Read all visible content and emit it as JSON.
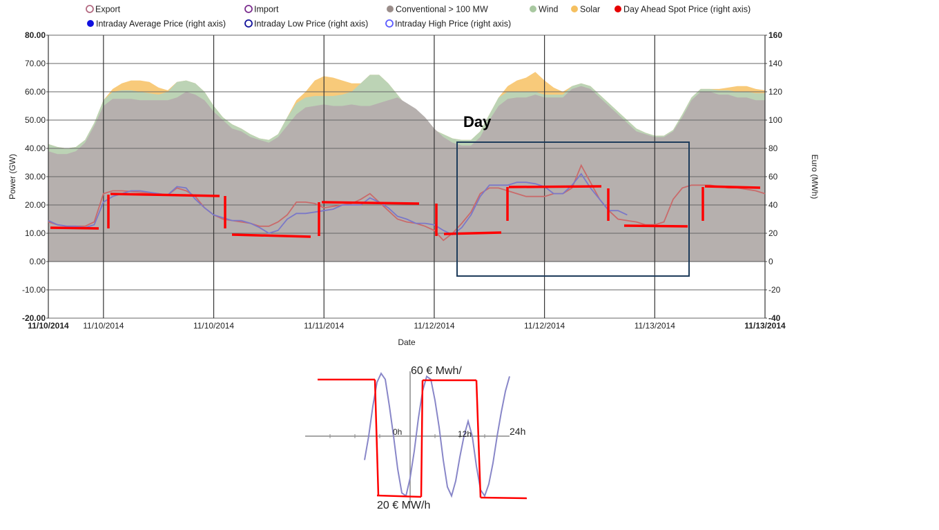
{
  "legend": [
    {
      "label": "Export",
      "kind": "ring",
      "color": "#b36b82"
    },
    {
      "label": "Import",
      "kind": "ring",
      "color": "#7b2e8e"
    },
    {
      "label": "Conventional > 100 MW",
      "kind": "dot",
      "color": "#9a8d8a"
    },
    {
      "label": "Wind",
      "kind": "dot",
      "color": "#a8c8a0"
    },
    {
      "label": "Solar",
      "kind": "dot",
      "color": "#f5c060"
    },
    {
      "label": "Day Ahead Spot Price (right axis)",
      "kind": "dot",
      "color": "#e60000"
    },
    {
      "label": "Intraday Average Price (right axis)",
      "kind": "dot",
      "color": "#1010e0"
    },
    {
      "label": "Intraday Low Price (right axis)",
      "kind": "ring",
      "color": "#10109a"
    },
    {
      "label": "Intraday High Price (right axis)",
      "kind": "ring",
      "color": "#5a5aff"
    }
  ],
  "chart_data": [
    {
      "type": "area",
      "xlabel": "Date",
      "ylabel": "Power (GW)",
      "y2label": "Euro (MWh)",
      "ylim": [
        -20,
        80
      ],
      "y2lim": [
        -40,
        160
      ],
      "x_unit": "hours from 11/10/2014 00:00",
      "xlim": [
        0,
        78
      ],
      "y_ticks": [
        "80.00",
        "70.00",
        "60.00",
        "50.00",
        "40.00",
        "30.00",
        "20.00",
        "10.00",
        "0.00",
        "-10.00",
        "-20.00"
      ],
      "y2_ticks": [
        "160",
        "140",
        "120",
        "100",
        "80",
        "60",
        "40",
        "20",
        "0",
        "-20",
        "-40"
      ],
      "x_tick_labels": [
        {
          "label": "11/10/2014",
          "x": 0,
          "bold": true
        },
        {
          "label": "11/10/2014",
          "x": 6,
          "bold": false
        },
        {
          "label": "11/10/2014",
          "x": 18,
          "bold": false
        },
        {
          "label": "11/11/2014",
          "x": 30,
          "bold": false
        },
        {
          "label": "11/12/2014",
          "x": 42,
          "bold": false
        },
        {
          "label": "11/12/2014",
          "x": 54,
          "bold": false
        },
        {
          "label": "11/13/2014",
          "x": 66,
          "bold": false
        },
        {
          "label": "11/13/2014",
          "x": 78,
          "bold": true
        }
      ],
      "grid": true,
      "series": [
        {
          "name": "Conventional > 100 MW",
          "axis": "left",
          "fill": "#b6b0ae",
          "x": [
            0,
            1,
            2,
            3,
            4,
            5,
            6,
            7,
            8,
            9,
            10,
            11,
            12,
            13,
            14,
            15,
            16,
            17,
            18,
            19,
            20,
            21,
            22,
            23,
            24,
            25,
            26,
            27,
            28,
            29,
            30,
            31,
            32,
            33,
            34,
            35,
            36,
            37,
            38,
            39,
            40,
            41,
            42,
            43,
            44,
            45,
            46,
            47,
            48,
            49,
            50,
            51,
            52,
            53,
            54,
            55,
            56,
            57,
            58,
            59,
            60,
            61,
            62,
            63,
            64,
            65,
            66,
            67,
            68,
            69,
            70,
            71,
            72,
            73,
            74,
            75,
            76,
            77,
            78
          ],
          "y": [
            39,
            38,
            38,
            39,
            42,
            48,
            55,
            57.5,
            57.5,
            57.5,
            57,
            57,
            57,
            57,
            58,
            60,
            59,
            57,
            53,
            50,
            47,
            46,
            44,
            43,
            42,
            44,
            48,
            52,
            54.5,
            55,
            55.5,
            55,
            55,
            55.5,
            55,
            55,
            56,
            57,
            58,
            56,
            54,
            51,
            47,
            44,
            42,
            41,
            41,
            44,
            50,
            55,
            57.5,
            58,
            58,
            59,
            58,
            58,
            58,
            61,
            62,
            61,
            58,
            55,
            52,
            49,
            46,
            45,
            44,
            44,
            46,
            51,
            57,
            60,
            60,
            59,
            59,
            58,
            58,
            57,
            57
          ]
        },
        {
          "name": "Wind",
          "axis": "left",
          "fill": "#bcd3b5",
          "x": [
            0,
            1,
            2,
            3,
            4,
            5,
            6,
            7,
            8,
            9,
            10,
            11,
            12,
            13,
            14,
            15,
            16,
            17,
            18,
            19,
            20,
            21,
            22,
            23,
            24,
            25,
            26,
            27,
            28,
            29,
            30,
            31,
            32,
            33,
            34,
            35,
            36,
            37,
            38,
            39,
            40,
            41,
            42,
            43,
            44,
            45,
            46,
            47,
            48,
            49,
            50,
            51,
            52,
            53,
            54,
            55,
            56,
            57,
            58,
            59,
            60,
            61,
            62,
            63,
            64,
            65,
            66,
            67,
            68,
            69,
            70,
            71,
            72,
            73,
            74,
            75,
            76,
            77,
            78
          ],
          "y": [
            41.5,
            40.5,
            40,
            40.5,
            43,
            49,
            57,
            60,
            60.5,
            60.5,
            60,
            59.5,
            59,
            60,
            63.5,
            64,
            63,
            60,
            55,
            51,
            48.5,
            47,
            45,
            43.5,
            43,
            45,
            51,
            56,
            58,
            58.5,
            58.5,
            58.5,
            59,
            60,
            63,
            66,
            66,
            63,
            59,
            55,
            51,
            48,
            46.5,
            45,
            43.5,
            43,
            43,
            46,
            52,
            58,
            60,
            60,
            60,
            60,
            59,
            59,
            59,
            62,
            63,
            62,
            59,
            56,
            53,
            50,
            47,
            45.5,
            44.5,
            44.5,
            46.5,
            52,
            58,
            61,
            61,
            60.5,
            60.5,
            60,
            60,
            59.5,
            59.5
          ]
        },
        {
          "name": "Solar",
          "axis": "left",
          "fill": "#f8ca7a",
          "x": [
            0,
            1,
            2,
            3,
            4,
            5,
            6,
            7,
            8,
            9,
            10,
            11,
            12,
            13,
            14,
            15,
            16,
            17,
            18,
            19,
            20,
            21,
            22,
            23,
            24,
            25,
            26,
            27,
            28,
            29,
            30,
            31,
            32,
            33,
            34,
            35,
            36,
            37,
            38,
            39,
            40,
            41,
            42,
            43,
            44,
            45,
            46,
            47,
            48,
            49,
            50,
            51,
            52,
            53,
            54,
            55,
            56,
            57,
            58,
            59,
            60,
            61,
            62,
            63,
            64,
            65,
            66,
            67,
            68,
            69,
            70,
            71,
            72,
            73,
            74,
            75,
            76,
            77,
            78
          ],
          "y": [
            41.5,
            40.5,
            40,
            40.5,
            43,
            49,
            57,
            61,
            63,
            64,
            64,
            63.5,
            61.5,
            60.5,
            63.5,
            64,
            63,
            60,
            55,
            51,
            48.5,
            47,
            45,
            43.5,
            43,
            45,
            51,
            57,
            60,
            64,
            65.5,
            65,
            64,
            63,
            63,
            66,
            66,
            63,
            59,
            55,
            51,
            48,
            46.5,
            45,
            43.5,
            43,
            43,
            46,
            52,
            58,
            62,
            64,
            65,
            67,
            64,
            61.5,
            60,
            62,
            63,
            62,
            59,
            56,
            53,
            50,
            47,
            45.5,
            44.5,
            44.5,
            46.5,
            52,
            58,
            61,
            61,
            61,
            61.5,
            62,
            62,
            61,
            60.5
          ]
        },
        {
          "name": "Day Ahead Spot Price (right axis)",
          "axis": "right",
          "color": "#c96a6a",
          "x": [
            0,
            1,
            2,
            3,
            4,
            5,
            6,
            7,
            8,
            9,
            10,
            11,
            12,
            13,
            14,
            15,
            16,
            17,
            18,
            19,
            20,
            21,
            22,
            23,
            24,
            25,
            26,
            27,
            28,
            29,
            30,
            31,
            32,
            33,
            34,
            35,
            36,
            37,
            38,
            39,
            40,
            41,
            42,
            43,
            44,
            45,
            46,
            47,
            48,
            49,
            50,
            51,
            52,
            53,
            54,
            55,
            56,
            57,
            58,
            59,
            60,
            61,
            62,
            63,
            64,
            65,
            66,
            67,
            68,
            69,
            70,
            71,
            72,
            73,
            74,
            75,
            76,
            77,
            78
          ],
          "y": [
            28,
            26,
            25,
            25,
            25,
            28,
            48,
            50,
            50,
            49.5,
            49,
            48.5,
            48,
            47,
            52,
            50,
            46,
            38,
            33,
            30,
            29,
            28,
            27,
            25,
            25,
            28,
            33,
            42,
            42,
            41,
            38,
            39,
            40,
            41,
            44,
            48,
            42,
            36,
            30,
            28,
            27,
            25,
            22,
            15,
            20,
            27,
            35,
            48,
            52,
            52,
            50,
            48,
            46,
            46,
            46,
            48,
            48,
            52,
            68,
            56,
            44,
            36,
            30,
            29,
            28,
            26,
            26,
            28,
            44,
            52,
            54,
            54,
            54,
            53,
            52,
            52,
            51,
            50,
            48
          ]
        },
        {
          "name": "Intraday Average Price (right axis)",
          "axis": "right",
          "color": "#7a78c8",
          "x": [
            0,
            1,
            2,
            3,
            4,
            5,
            6,
            7,
            8,
            9,
            10,
            11,
            12,
            13,
            14,
            15,
            16,
            17,
            18,
            19,
            20,
            21,
            22,
            23,
            24,
            25,
            26,
            27,
            28,
            29,
            30,
            31,
            32,
            33,
            34,
            35,
            36,
            37,
            38,
            39,
            40,
            41,
            42,
            43,
            44,
            45,
            46,
            47,
            48,
            49,
            50,
            51,
            52,
            53,
            54,
            55,
            56,
            57,
            58,
            59,
            60,
            61,
            62,
            63
          ],
          "y": [
            29,
            26,
            25,
            25,
            24,
            26,
            42,
            46,
            48,
            50,
            50,
            49,
            48,
            47,
            53,
            52,
            44,
            38,
            33,
            31,
            29,
            29,
            27,
            24,
            20,
            22,
            30,
            34,
            34,
            35,
            36,
            37,
            40,
            40,
            40,
            45,
            42,
            38,
            32,
            30,
            27,
            27,
            26,
            22,
            19,
            24,
            33,
            46,
            54,
            54,
            54,
            56,
            56,
            55,
            53,
            48,
            48,
            54,
            62,
            52,
            44,
            36,
            36,
            33
          ]
        }
      ]
    },
    {
      "type": "line",
      "xlabel": "",
      "ylabel": "",
      "annotations": [
        "60 € Mwh/",
        "20 € MW/h",
        "0h",
        "12h",
        "24h"
      ],
      "x_unit": "hours",
      "series": [
        {
          "color": "#8886c8",
          "x": [
            -11,
            -10,
            -9,
            -8,
            -7,
            -6,
            -5,
            -4,
            -3,
            -2,
            -1,
            0,
            1,
            2,
            3,
            4,
            5,
            6,
            7,
            8,
            9,
            10,
            11,
            12,
            13,
            14,
            15,
            16,
            17,
            18,
            19,
            20,
            21,
            22,
            23,
            24
          ],
          "y": [
            32,
            40,
            50,
            58,
            61,
            59,
            50,
            40,
            29,
            21,
            20,
            26,
            35,
            46,
            55,
            60,
            59,
            52,
            43,
            32,
            23,
            20,
            25,
            33,
            40,
            45,
            40,
            30,
            22,
            20,
            24,
            31,
            40,
            48,
            55,
            60
          ]
        }
      ]
    }
  ],
  "annotations": {
    "box_label": "Day"
  }
}
